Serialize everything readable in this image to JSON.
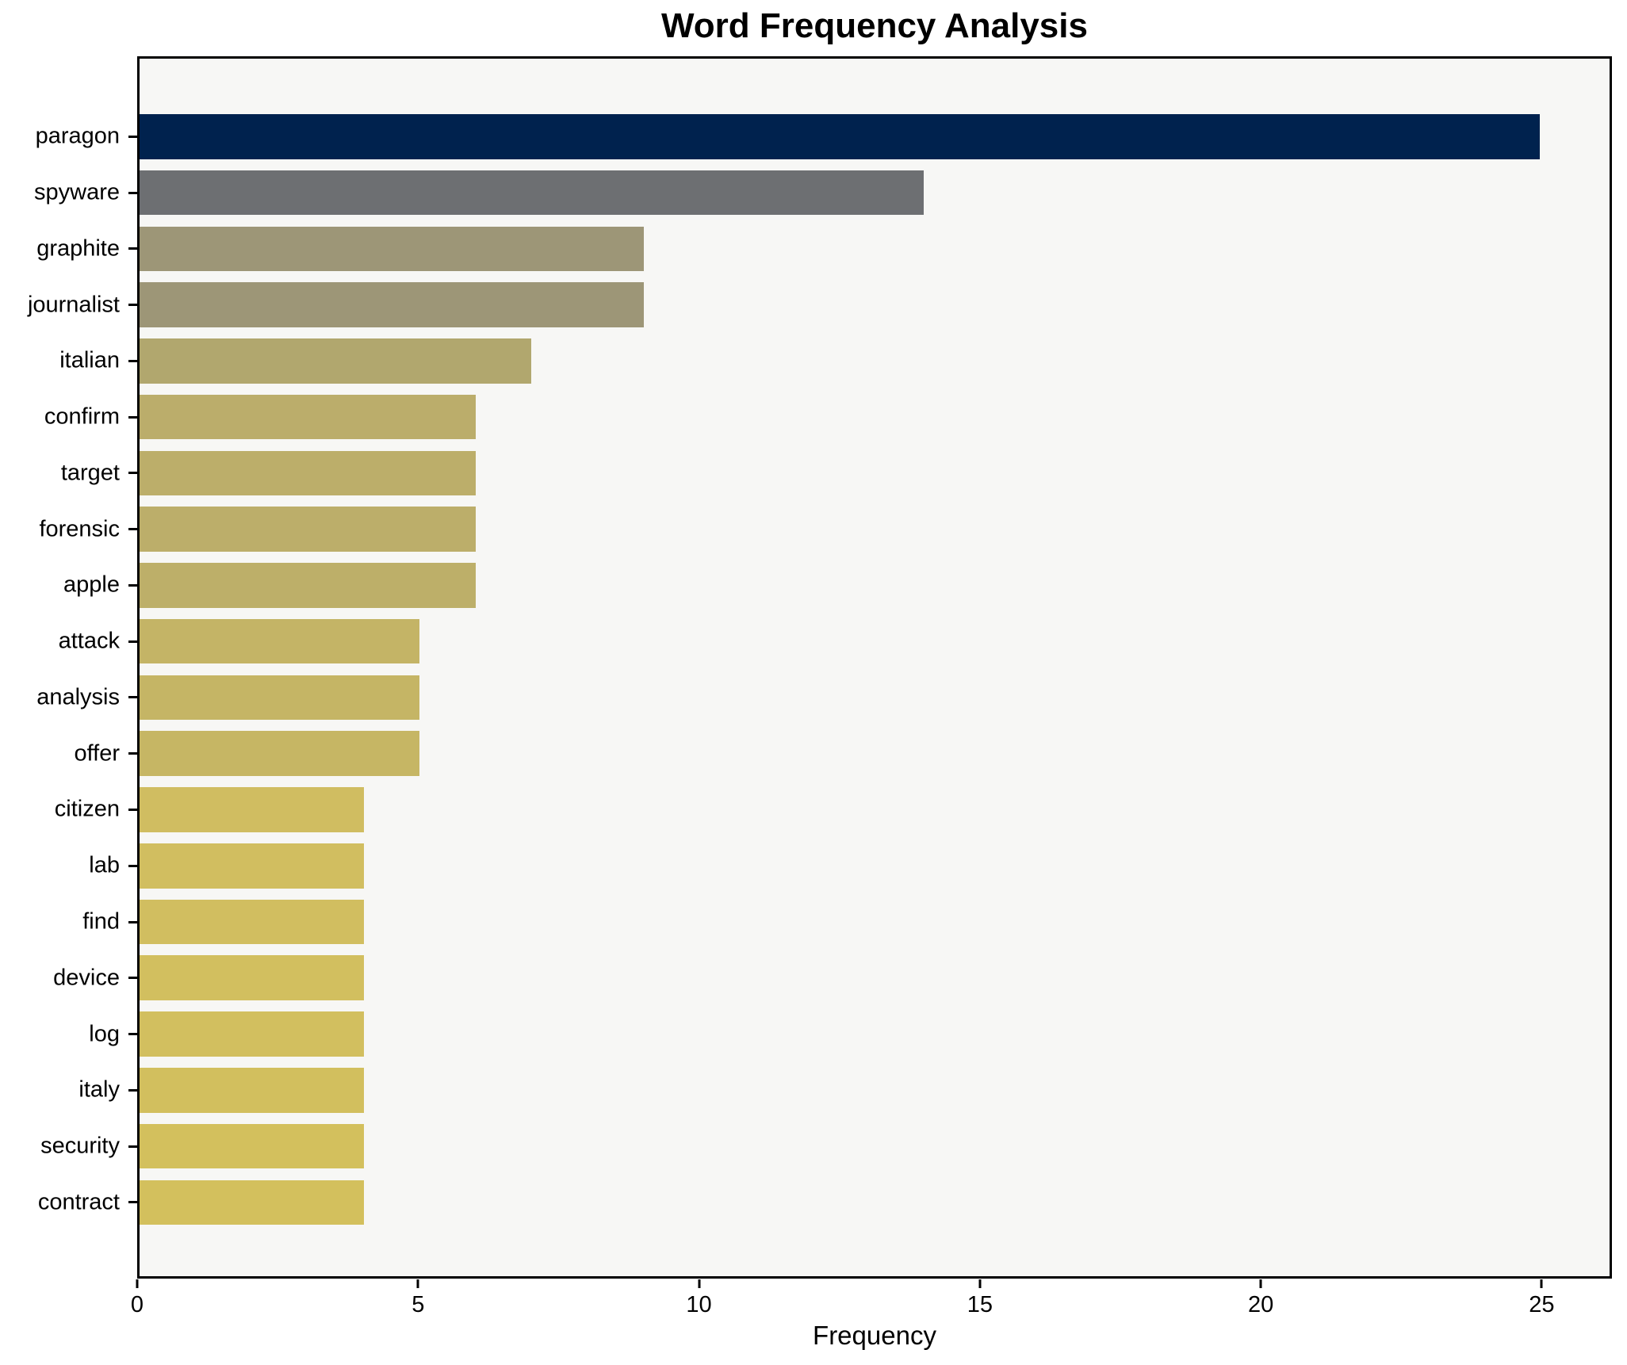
{
  "title": "Word Frequency Analysis",
  "xlabel": "Frequency",
  "chart_data": {
    "type": "bar",
    "orientation": "horizontal",
    "title": "Word Frequency Analysis",
    "xlabel": "Frequency",
    "ylabel": "",
    "categories": [
      "paragon",
      "spyware",
      "graphite",
      "journalist",
      "italian",
      "confirm",
      "target",
      "forensic",
      "apple",
      "attack",
      "analysis",
      "offer",
      "citizen",
      "lab",
      "find",
      "device",
      "log",
      "italy",
      "security",
      "contract"
    ],
    "values": [
      25,
      14,
      9,
      9,
      7,
      6,
      6,
      6,
      6,
      5,
      5,
      5,
      4,
      4,
      4,
      4,
      4,
      4,
      4,
      4
    ],
    "bar_colors": [
      "#00224e",
      "#6d6f72",
      "#9d9677",
      "#9d9677",
      "#b1a76e",
      "#bbad6b",
      "#bcae6a",
      "#bcae6a",
      "#bdaf69",
      "#c4b466",
      "#c5b565",
      "#c6b664",
      "#d0bd61",
      "#d1be60",
      "#d1be60",
      "#d2bf5f",
      "#d2bf5f",
      "#d2bf5e",
      "#d3c05d",
      "#d3c05d"
    ],
    "xlim": [
      0,
      26.25
    ],
    "xticks": [
      0,
      5,
      10,
      15,
      20,
      25
    ],
    "grid": false,
    "legend": false,
    "plot_bg": "#f7f7f5",
    "figure_bg": "#ffffff",
    "spine_color": "#000000"
  }
}
